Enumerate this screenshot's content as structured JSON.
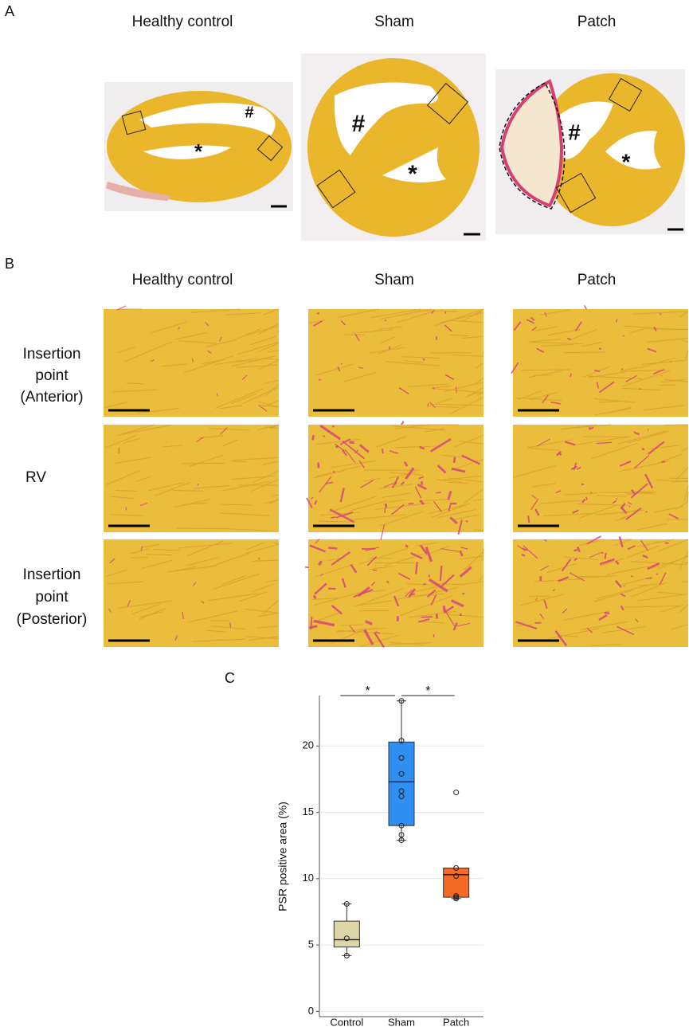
{
  "panel_a": {
    "label": "A",
    "columns": [
      "Healthy control",
      "Sham",
      "Patch"
    ],
    "symbols": [
      "#",
      "*"
    ]
  },
  "panel_b": {
    "label": "B",
    "columns": [
      "Healthy control",
      "Sham",
      "Patch"
    ],
    "rows": [
      [
        "Insertion",
        "point",
        "(Anterior)"
      ],
      [
        "RV"
      ],
      [
        "Insertion",
        "point",
        "(Posterior)"
      ]
    ]
  },
  "chart_data": {
    "type": "box",
    "label": "C",
    "ylabel": "PSR positive area (%)",
    "categories": [
      "Control",
      "Sham",
      "Patch"
    ],
    "colors": [
      "#ddd6a6",
      "#2f8ff0",
      "#f26a26"
    ],
    "boxes": [
      {
        "min": 4.2,
        "q1": 4.85,
        "median": 5.4,
        "q3": 6.8,
        "max": 8.1
      },
      {
        "min": 12.9,
        "q1": 14.0,
        "median": 17.3,
        "q3": 20.3,
        "max": 23.4
      },
      {
        "min": 8.5,
        "q1": 8.6,
        "median": 10.3,
        "q3": 10.8,
        "max": 10.8
      }
    ],
    "points": [
      [
        8.1,
        5.5,
        4.2
      ],
      [
        23.4,
        20.4,
        19.1,
        17.9,
        16.6,
        16.2,
        14.0,
        13.3,
        12.9
      ],
      [
        16.5,
        10.8,
        10.2,
        8.7,
        8.6,
        8.5
      ]
    ],
    "significance": [
      "*",
      "*"
    ],
    "ylim": [
      -0.4,
      23.8
    ],
    "yticks": [
      0,
      5,
      10,
      15,
      20
    ],
    "grid": true
  }
}
